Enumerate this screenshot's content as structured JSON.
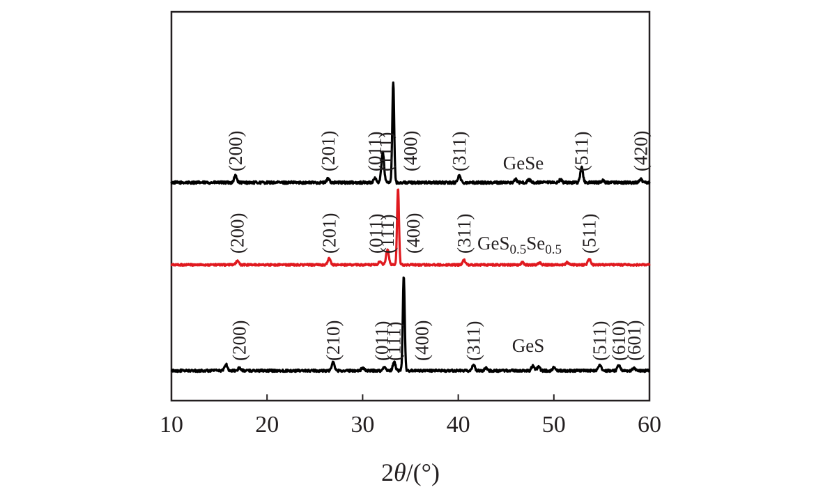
{
  "chart_data": {
    "type": "line",
    "xlabel_prefix": "2",
    "xlabel_symbol": "θ",
    "xlabel_unit": "/(°)",
    "ylabel": "",
    "xlim": [
      10,
      60
    ],
    "x_ticks": [
      "10",
      "20",
      "30",
      "40",
      "50",
      "60"
    ],
    "y_ticks": [],
    "grid": false,
    "legend": "none",
    "series": [
      {
        "name": "GeSe",
        "label_parts": [
          {
            "text": "GeSe",
            "sub": false
          }
        ],
        "color": "#000000",
        "peaks": [
          {
            "x": 16.7,
            "h": 0.07
          },
          {
            "x": 26.4,
            "h": 0.04
          },
          {
            "x": 31.3,
            "h": 0.04
          },
          {
            "x": 32.1,
            "h": 0.3
          },
          {
            "x": 33.2,
            "h": 1.0
          },
          {
            "x": 40.1,
            "h": 0.07
          },
          {
            "x": 46.0,
            "h": 0.03
          },
          {
            "x": 47.4,
            "h": 0.03
          },
          {
            "x": 50.7,
            "h": 0.03
          },
          {
            "x": 52.9,
            "h": 0.15
          },
          {
            "x": 55.1,
            "h": 0.02
          },
          {
            "x": 59.1,
            "h": 0.03
          }
        ],
        "labels": [
          {
            "text": "(200)",
            "x": 16.7
          },
          {
            "text": "(201)",
            "x": 26.4
          },
          {
            "text": "(011)",
            "x": 31.3
          },
          {
            "text": "(111)",
            "x": 32.4
          },
          {
            "text": "(400)",
            "x": 35.0
          },
          {
            "text": "(311)",
            "x": 40.1
          },
          {
            "text": "(511)",
            "x": 52.9
          },
          {
            "text": "(420)",
            "x": 59.1
          }
        ]
      },
      {
        "name": "GeS0.5Se0.5",
        "label_parts": [
          {
            "text": "GeS",
            "sub": false
          },
          {
            "text": "0.5",
            "sub": true
          },
          {
            "text": "Se",
            "sub": false
          },
          {
            "text": "0.5",
            "sub": true
          }
        ],
        "color": "#e0191f",
        "peaks": [
          {
            "x": 16.9,
            "h": 0.05
          },
          {
            "x": 26.5,
            "h": 0.08
          },
          {
            "x": 31.8,
            "h": 0.04
          },
          {
            "x": 32.6,
            "h": 0.2
          },
          {
            "x": 33.7,
            "h": 1.0
          },
          {
            "x": 40.6,
            "h": 0.06
          },
          {
            "x": 46.7,
            "h": 0.03
          },
          {
            "x": 48.5,
            "h": 0.03
          },
          {
            "x": 51.4,
            "h": 0.03
          },
          {
            "x": 53.7,
            "h": 0.08
          }
        ],
        "labels": [
          {
            "text": "(200)",
            "x": 16.9
          },
          {
            "text": "(201)",
            "x": 26.5
          },
          {
            "text": "(011)",
            "x": 31.4
          },
          {
            "text": "(111)",
            "x": 32.6
          },
          {
            "text": "(400)",
            "x": 35.3
          },
          {
            "text": "(311)",
            "x": 40.6
          },
          {
            "text": "(511)",
            "x": 53.7
          }
        ]
      },
      {
        "name": "GeS",
        "label_parts": [
          {
            "text": "GeS",
            "sub": false
          }
        ],
        "color": "#000000",
        "peaks": [
          {
            "x": 15.7,
            "h": 0.07
          },
          {
            "x": 17.1,
            "h": 0.03
          },
          {
            "x": 26.9,
            "h": 0.09
          },
          {
            "x": 30.0,
            "h": 0.03
          },
          {
            "x": 32.3,
            "h": 0.04
          },
          {
            "x": 33.3,
            "h": 0.09
          },
          {
            "x": 34.3,
            "h": 1.0
          },
          {
            "x": 41.6,
            "h": 0.06
          },
          {
            "x": 42.9,
            "h": 0.03
          },
          {
            "x": 47.8,
            "h": 0.05
          },
          {
            "x": 48.4,
            "h": 0.04
          },
          {
            "x": 50.0,
            "h": 0.03
          },
          {
            "x": 54.8,
            "h": 0.06
          },
          {
            "x": 56.8,
            "h": 0.06
          },
          {
            "x": 58.4,
            "h": 0.03
          }
        ],
        "labels": [
          {
            "text": "(200)",
            "x": 17.1
          },
          {
            "text": "(210)",
            "x": 26.9
          },
          {
            "text": "(011)",
            "x": 32.0
          },
          {
            "text": "(111)",
            "x": 33.3
          },
          {
            "text": "(400)",
            "x": 36.2
          },
          {
            "text": "(311)",
            "x": 41.6
          },
          {
            "text": "(511)",
            "x": 54.8
          },
          {
            "text": "(610)",
            "x": 56.8
          },
          {
            "text": "(601)",
            "x": 58.4
          }
        ]
      }
    ]
  }
}
